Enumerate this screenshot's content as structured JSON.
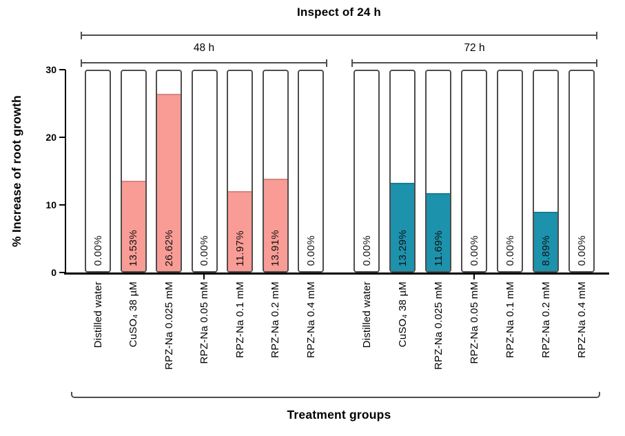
{
  "chart_data": {
    "type": "bar",
    "title": "Inspect of 24 h",
    "xlabel": "Treatment groups",
    "ylabel": "% Increase of root growth",
    "ylim": [
      0,
      30
    ],
    "yticks": [
      0,
      10,
      20,
      30
    ],
    "grid": false,
    "legend_position": "none",
    "categories": [
      "Distilled water",
      "CuSO₄ 38 µM",
      "RPZ-Na 0.025 mM",
      "RPZ-Na 0.05 mM",
      "RPZ-Na 0.1 mM",
      "RPZ-Na 0.2 mM",
      "RPZ-Na 0.4 mM"
    ],
    "series": [
      {
        "name": "48 h",
        "fill_color": "#f89c95",
        "values": [
          0.0,
          13.53,
          26.62,
          0.0,
          11.97,
          13.91,
          0.0
        ],
        "value_labels": [
          "0.00%",
          "13.53%",
          "26.62%",
          "0.00%",
          "11.97%",
          "13.91%",
          "0.00%"
        ]
      },
      {
        "name": "72 h",
        "fill_color": "#1c92ac",
        "values": [
          0.0,
          13.29,
          11.69,
          0.0,
          0.0,
          8.89,
          0.0
        ],
        "value_labels": [
          "0.00%",
          "13.29%",
          "11.69%",
          "0.00%",
          "0.00%",
          "8.89%",
          "0.00%"
        ]
      }
    ],
    "bar_outline_color": "#4d4d4d",
    "axis_color": "#000000"
  }
}
